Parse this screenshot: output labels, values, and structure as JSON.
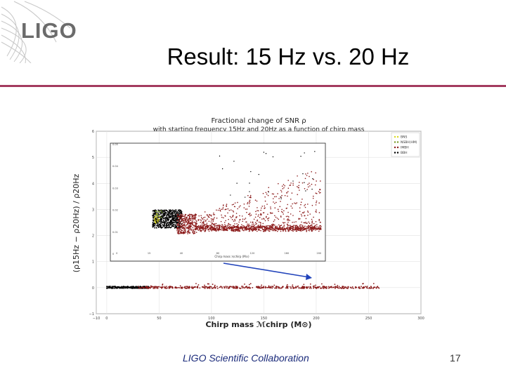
{
  "header": {
    "logo_text": "LIGO",
    "title": "Result: 15 Hz vs. 20 Hz"
  },
  "footer": {
    "collaboration": "LIGO Scientific Collaboration",
    "page_number": "17"
  },
  "colors": {
    "title_rule": "#a33a5e",
    "BNS": "#d8d820",
    "NSBH": "#7a9a2a",
    "IMBH": "#8b1a1a",
    "BBH": "#000000",
    "arrow": "#2244bb",
    "footer_text": "#1a2a7a"
  },
  "chart_data": [
    {
      "type": "scatter",
      "title": "Fractional change of SNR ρ",
      "subtitle": "with starting frequency 15Hz and 20Hz as a function of chirp mass",
      "xlabel": "Chirp mass ℳchirp (M⊙)",
      "ylabel": "(ρ15Hz − ρ20Hz) / ρ20Hz",
      "xlim": [
        -10,
        300
      ],
      "ylim": [
        -1,
        6
      ],
      "xticks": [
        "−10",
        "0",
        "50",
        "100",
        "150",
        "200",
        "250",
        "300"
      ],
      "yticks": [
        "−1",
        "0",
        "1",
        "2",
        "3",
        "4",
        "5",
        "6"
      ],
      "grid": true,
      "legend_position": "top-right",
      "series": [
        {
          "name": "BNS",
          "color": "#d8d820",
          "mass_range": [
            0.8,
            2.5
          ]
        },
        {
          "name": "NSBH(HM)",
          "color": "#7a9a2a",
          "mass_range": [
            2,
            7
          ]
        },
        {
          "name": "IMBH",
          "color": "#8b1a1a",
          "mass_range": [
            30,
            262
          ]
        },
        {
          "name": "BBH",
          "color": "#000000",
          "mass_range": [
            0,
            40
          ]
        }
      ],
      "band_level": 0.01
    }
  ],
  "inset": {
    "xtick_labels": [
      "0",
      "15",
      "40",
      "80",
      "120",
      "160",
      "200"
    ],
    "ytick_labels": [
      "0.05",
      "0.04",
      "0.03",
      "0.02",
      "0.01",
      "0"
    ],
    "xlabel": "Chirp mass ℳchirp (M⊙)"
  }
}
